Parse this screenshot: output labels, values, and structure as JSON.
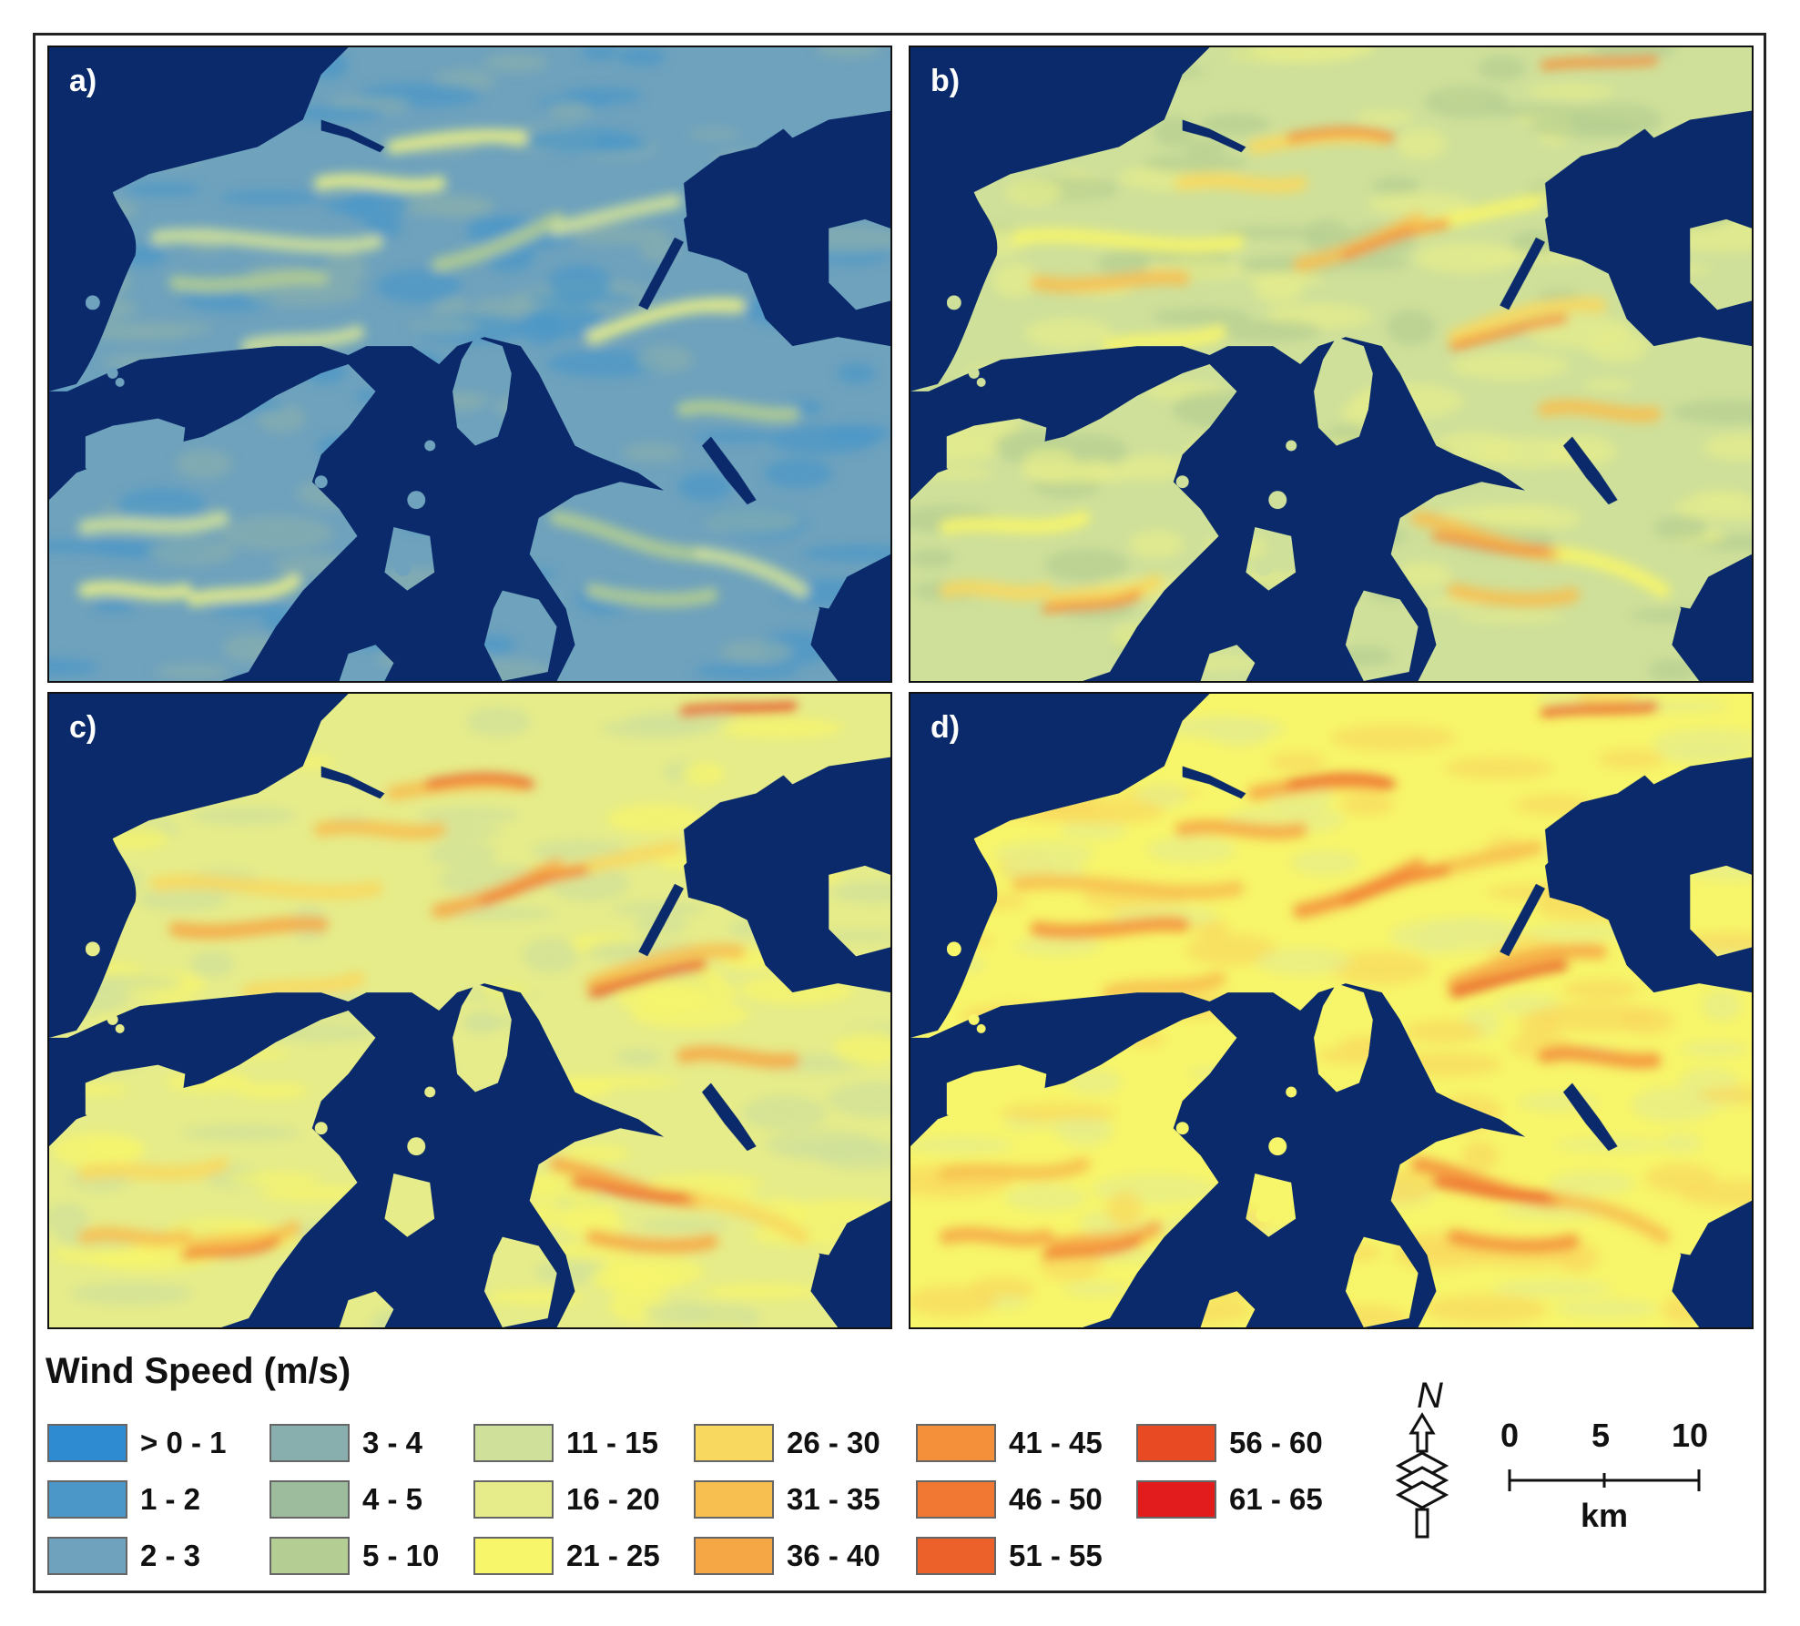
{
  "panels": [
    {
      "label": "a)",
      "scheme": "low"
    },
    {
      "label": "b)",
      "scheme": "midlow"
    },
    {
      "label": "c)",
      "scheme": "mid"
    },
    {
      "label": "d)",
      "scheme": "high"
    }
  ],
  "legend": {
    "title": "Wind Speed (m/s)",
    "items": [
      {
        "label": "> 0  - 1",
        "color": "#2f8bd1"
      },
      {
        "label": "1 - 2",
        "color": "#4a97c8"
      },
      {
        "label": "2 - 3",
        "color": "#6fa2bd"
      },
      {
        "label": "3 - 4",
        "color": "#88aeae"
      },
      {
        "label": "4 - 5",
        "color": "#9dbb9d"
      },
      {
        "label": "5 - 10",
        "color": "#b4cd92"
      },
      {
        "label": "11 - 15",
        "color": "#cfe09a"
      },
      {
        "label": "16 - 20",
        "color": "#e6ec8a"
      },
      {
        "label": "21 - 25",
        "color": "#f7f56a"
      },
      {
        "label": "26 - 30",
        "color": "#f8d85e"
      },
      {
        "label": "31 - 35",
        "color": "#f7bf50"
      },
      {
        "label": "36 - 40",
        "color": "#f6a745"
      },
      {
        "label": "41 - 45",
        "color": "#f48f3a"
      },
      {
        "label": "46 - 50",
        "color": "#f07832"
      },
      {
        "label": "51 - 55",
        "color": "#ec602a"
      },
      {
        "label": "56 - 60",
        "color": "#e84a24"
      },
      {
        "label": "61 - 65",
        "color": "#e21c1c"
      }
    ]
  },
  "north_label": "N",
  "scale": {
    "ticks": [
      "0",
      "5",
      "10"
    ],
    "unit": "km"
  },
  "colors": {
    "water": "#0a2a6b",
    "frame": "#222222"
  }
}
